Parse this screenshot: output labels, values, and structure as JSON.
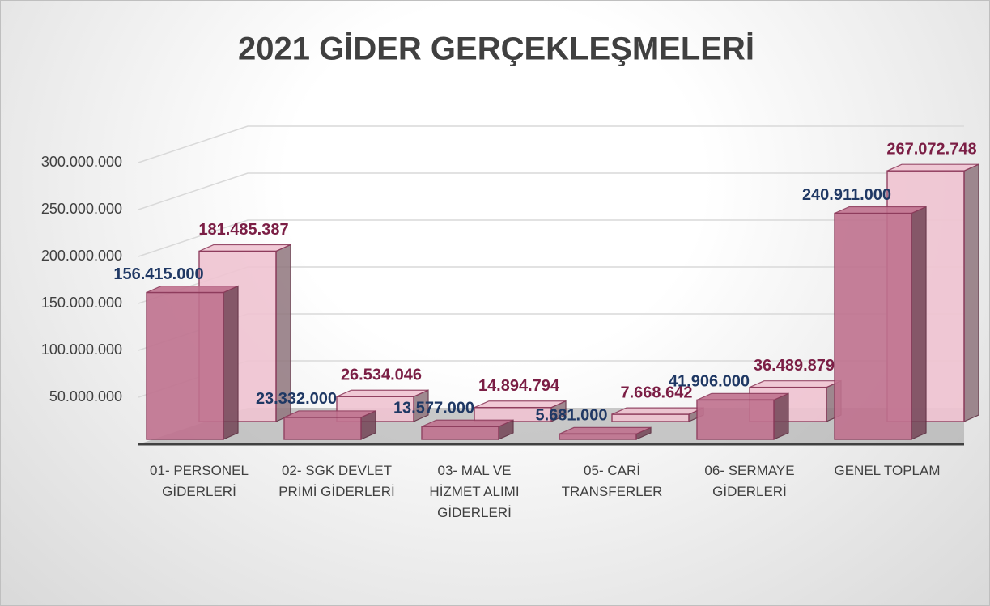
{
  "chart_data": {
    "type": "bar3d",
    "title": "2021 GİDER GERÇEKLEŞMELERİ",
    "categories": [
      "01- PERSONEL GİDERLERİ",
      "02- SGK DEVLET PRİMİ GİDERLERİ",
      "03- MAL VE HİZMET ALIMI GİDERLERİ",
      "05- CARİ TRANSFERLER",
      "06- SERMAYE GİDERLERİ",
      "GENEL TOPLAM"
    ],
    "series": [
      {
        "color": "#f0c4d2",
        "label_color": "#7b1e45",
        "values": [
          181485387,
          26534046,
          14894794,
          7668642,
          36489879,
          267072748
        ],
        "value_labels": [
          "181.485.387",
          "26.534.046",
          "14.894.794",
          "7.668.642",
          "36.489.879",
          "267.072.748"
        ]
      },
      {
        "color": "#c0728f",
        "label_color": "#1f3864",
        "values": [
          156415000,
          23332000,
          13577000,
          5681000,
          41906000,
          240911000
        ],
        "value_labels": [
          "156.415.000",
          "23.332.000",
          "13.577.000",
          "5.681.000",
          "41.906.000",
          "240.911.000"
        ]
      }
    ],
    "ylim": [
      0,
      300000000
    ],
    "yticks": [
      {
        "value": 50000000,
        "label": "50.000.000"
      },
      {
        "value": 100000000,
        "label": "100.000.000"
      },
      {
        "value": 150000000,
        "label": "150.000.000"
      },
      {
        "value": 200000000,
        "label": "200.000.000"
      },
      {
        "value": 250000000,
        "label": "250.000.000"
      },
      {
        "value": 300000000,
        "label": "300.000.000"
      }
    ],
    "grid": true
  }
}
